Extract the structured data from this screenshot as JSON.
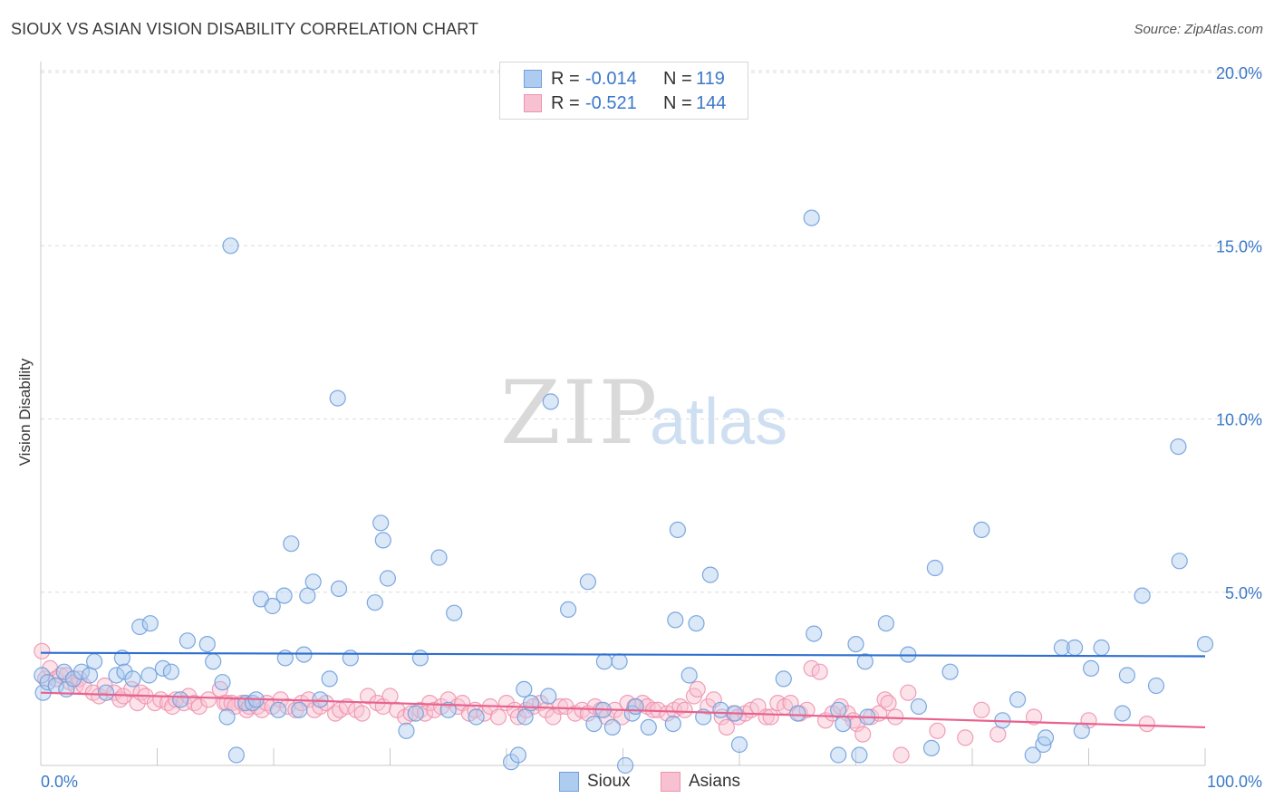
{
  "title": "SIOUX VS ASIAN VISION DISABILITY CORRELATION CHART",
  "source": "Source: ZipAtlas.com",
  "watermark": {
    "zip": "ZIP",
    "atlas": "atlas"
  },
  "legend_top": {
    "rows": [
      {
        "r_label": "R =",
        "r_value": "-0.014",
        "n_label": "N =",
        "n_value": "119"
      },
      {
        "r_label": "R =",
        "r_value": "-0.521",
        "n_label": "N =",
        "n_value": "144"
      }
    ]
  },
  "legend_bottom": [
    "Sioux",
    "Asians"
  ],
  "colors": {
    "sioux_fill": "#aecbf0",
    "sioux_stroke": "#6f9fdc",
    "sioux_line": "#2f6fcf",
    "asians_fill": "#f8c1d1",
    "asians_stroke": "#ee94b0",
    "asians_line": "#e8628e",
    "tick_text": "#3b78c9",
    "grid": "#dcdcdc"
  },
  "chart_data": {
    "type": "scatter",
    "title": "SIOUX VS ASIAN VISION DISABILITY CORRELATION CHART",
    "xlabel": "",
    "ylabel": "Vision Disability",
    "xlim": [
      0,
      100
    ],
    "ylim": [
      0,
      20.8
    ],
    "x_tick_labels": [
      "0.0%",
      "100.0%"
    ],
    "y_ticks": [
      5,
      10,
      15,
      20
    ],
    "y_tick_labels": [
      "5.0%",
      "10.0%",
      "15.0%",
      "20.0%"
    ],
    "grid": true,
    "legend_placement": "top-center and bottom",
    "series": [
      {
        "name": "Sioux",
        "r": -0.014,
        "n": 119,
        "trend": {
          "x": [
            0,
            100
          ],
          "y": [
            3.25,
            3.15
          ]
        },
        "points": [
          [
            0.1,
            2.6
          ],
          [
            0.2,
            2.1
          ],
          [
            0.6,
            2.4
          ],
          [
            1.3,
            2.3
          ],
          [
            2.0,
            2.7
          ],
          [
            2.2,
            2.2
          ],
          [
            2.8,
            2.5
          ],
          [
            3.5,
            2.7
          ],
          [
            4.2,
            2.6
          ],
          [
            4.6,
            3.0
          ],
          [
            5.6,
            2.1
          ],
          [
            6.5,
            2.6
          ],
          [
            7.0,
            3.1
          ],
          [
            7.2,
            2.7
          ],
          [
            7.9,
            2.5
          ],
          [
            8.5,
            4.0
          ],
          [
            9.3,
            2.6
          ],
          [
            9.4,
            4.1
          ],
          [
            10.5,
            2.8
          ],
          [
            11.2,
            2.7
          ],
          [
            12.0,
            1.9
          ],
          [
            12.6,
            3.6
          ],
          [
            14.3,
            3.5
          ],
          [
            14.8,
            3.0
          ],
          [
            15.6,
            2.4
          ],
          [
            16.0,
            1.4
          ],
          [
            16.3,
            15.0
          ],
          [
            16.8,
            0.3
          ],
          [
            17.6,
            1.8
          ],
          [
            18.2,
            1.8
          ],
          [
            18.5,
            1.9
          ],
          [
            18.9,
            4.8
          ],
          [
            19.9,
            4.6
          ],
          [
            20.4,
            1.6
          ],
          [
            20.9,
            4.9
          ],
          [
            21.0,
            3.1
          ],
          [
            21.5,
            6.4
          ],
          [
            22.2,
            1.6
          ],
          [
            22.6,
            3.2
          ],
          [
            22.9,
            4.9
          ],
          [
            23.4,
            5.3
          ],
          [
            24.0,
            1.9
          ],
          [
            24.8,
            2.5
          ],
          [
            25.5,
            10.6
          ],
          [
            25.6,
            5.1
          ],
          [
            26.6,
            3.1
          ],
          [
            28.7,
            4.7
          ],
          [
            29.2,
            7.0
          ],
          [
            29.4,
            6.5
          ],
          [
            29.8,
            5.4
          ],
          [
            31.4,
            1.0
          ],
          [
            32.2,
            1.5
          ],
          [
            32.6,
            3.1
          ],
          [
            34.2,
            6.0
          ],
          [
            35.0,
            1.6
          ],
          [
            35.5,
            4.4
          ],
          [
            37.4,
            1.4
          ],
          [
            40.4,
            0.1
          ],
          [
            41.0,
            0.3
          ],
          [
            41.5,
            2.2
          ],
          [
            41.6,
            1.4
          ],
          [
            42.1,
            1.8
          ],
          [
            43.6,
            2.0
          ],
          [
            43.8,
            10.5
          ],
          [
            45.3,
            4.5
          ],
          [
            47.0,
            5.3
          ],
          [
            47.5,
            1.2
          ],
          [
            48.3,
            1.6
          ],
          [
            48.4,
            3.0
          ],
          [
            49.1,
            1.1
          ],
          [
            49.7,
            3.0
          ],
          [
            50.2,
            0.0
          ],
          [
            50.8,
            1.5
          ],
          [
            51.1,
            1.7
          ],
          [
            52.2,
            1.1
          ],
          [
            54.3,
            1.2
          ],
          [
            54.5,
            4.2
          ],
          [
            54.7,
            6.8
          ],
          [
            55.7,
            2.6
          ],
          [
            56.3,
            4.1
          ],
          [
            56.9,
            1.4
          ],
          [
            57.5,
            5.5
          ],
          [
            58.4,
            1.6
          ],
          [
            59.6,
            1.5
          ],
          [
            60.0,
            0.6
          ],
          [
            63.8,
            2.5
          ],
          [
            65.0,
            1.5
          ],
          [
            66.2,
            15.8
          ],
          [
            66.4,
            3.8
          ],
          [
            68.5,
            0.3
          ],
          [
            68.5,
            1.6
          ],
          [
            68.9,
            1.2
          ],
          [
            70.0,
            3.5
          ],
          [
            70.3,
            0.3
          ],
          [
            70.8,
            3.0
          ],
          [
            71.0,
            1.4
          ],
          [
            72.6,
            4.1
          ],
          [
            74.5,
            3.2
          ],
          [
            75.4,
            1.7
          ],
          [
            76.5,
            0.5
          ],
          [
            76.8,
            5.7
          ],
          [
            78.1,
            2.7
          ],
          [
            80.8,
            6.8
          ],
          [
            82.6,
            1.3
          ],
          [
            83.9,
            1.9
          ],
          [
            85.2,
            0.3
          ],
          [
            86.1,
            0.6
          ],
          [
            86.3,
            0.8
          ],
          [
            87.7,
            3.4
          ],
          [
            88.8,
            3.4
          ],
          [
            89.4,
            1.0
          ],
          [
            90.2,
            2.8
          ],
          [
            91.1,
            3.4
          ],
          [
            92.9,
            1.5
          ],
          [
            93.3,
            2.6
          ],
          [
            94.6,
            4.9
          ],
          [
            95.8,
            2.3
          ],
          [
            97.7,
            9.2
          ],
          [
            97.8,
            5.9
          ],
          [
            100.0,
            3.5
          ]
        ]
      },
      {
        "name": "Asians",
        "r": -0.521,
        "n": 144,
        "trend": {
          "x": [
            0,
            100
          ],
          "y": [
            2.1,
            1.1
          ]
        },
        "points": [
          [
            0.1,
            3.3
          ],
          [
            0.4,
            2.5
          ],
          [
            0.8,
            2.8
          ],
          [
            1.3,
            2.5
          ],
          [
            1.7,
            2.6
          ],
          [
            2.2,
            2.6
          ],
          [
            2.5,
            2.4
          ],
          [
            3.0,
            2.3
          ],
          [
            3.3,
            2.5
          ],
          [
            3.7,
            2.3
          ],
          [
            4.5,
            2.1
          ],
          [
            5.0,
            2.0
          ],
          [
            5.5,
            2.3
          ],
          [
            6.3,
            2.1
          ],
          [
            6.8,
            1.9
          ],
          [
            7.1,
            2.0
          ],
          [
            7.8,
            2.2
          ],
          [
            8.3,
            1.8
          ],
          [
            8.6,
            2.1
          ],
          [
            9.0,
            2.0
          ],
          [
            9.8,
            1.8
          ],
          [
            10.3,
            1.9
          ],
          [
            10.9,
            1.8
          ],
          [
            11.3,
            1.7
          ],
          [
            11.6,
            1.9
          ],
          [
            12.3,
            1.8
          ],
          [
            12.7,
            2.0
          ],
          [
            13.2,
            1.8
          ],
          [
            13.6,
            1.7
          ],
          [
            14.4,
            1.9
          ],
          [
            15.4,
            2.2
          ],
          [
            15.8,
            1.8
          ],
          [
            16.0,
            1.8
          ],
          [
            16.4,
            1.8
          ],
          [
            16.7,
            1.7
          ],
          [
            17.3,
            1.8
          ],
          [
            17.7,
            1.6
          ],
          [
            17.9,
            1.7
          ],
          [
            18.6,
            1.7
          ],
          [
            19.0,
            1.6
          ],
          [
            19.4,
            1.8
          ],
          [
            19.9,
            1.7
          ],
          [
            20.6,
            1.9
          ],
          [
            21.2,
            1.7
          ],
          [
            21.9,
            1.6
          ],
          [
            22.4,
            1.8
          ],
          [
            23.0,
            1.9
          ],
          [
            23.5,
            1.6
          ],
          [
            24.0,
            1.7
          ],
          [
            24.5,
            1.8
          ],
          [
            25.3,
            1.5
          ],
          [
            25.7,
            1.6
          ],
          [
            26.3,
            1.7
          ],
          [
            27.1,
            1.6
          ],
          [
            27.6,
            1.5
          ],
          [
            28.1,
            2.0
          ],
          [
            28.9,
            1.8
          ],
          [
            29.4,
            1.7
          ],
          [
            30.0,
            2.0
          ],
          [
            30.6,
            1.6
          ],
          [
            31.3,
            1.4
          ],
          [
            31.8,
            1.5
          ],
          [
            32.6,
            1.6
          ],
          [
            33.0,
            1.5
          ],
          [
            33.4,
            1.8
          ],
          [
            33.8,
            1.6
          ],
          [
            34.4,
            1.7
          ],
          [
            35.0,
            1.9
          ],
          [
            35.8,
            1.7
          ],
          [
            36.2,
            1.8
          ],
          [
            36.8,
            1.5
          ],
          [
            37.3,
            1.6
          ],
          [
            38.1,
            1.5
          ],
          [
            38.6,
            1.7
          ],
          [
            39.3,
            1.4
          ],
          [
            40.0,
            1.8
          ],
          [
            40.7,
            1.6
          ],
          [
            41.0,
            1.4
          ],
          [
            41.7,
            1.6
          ],
          [
            42.3,
            1.7
          ],
          [
            42.9,
            1.8
          ],
          [
            43.4,
            1.6
          ],
          [
            44.0,
            1.4
          ],
          [
            44.6,
            1.7
          ],
          [
            45.1,
            1.7
          ],
          [
            45.9,
            1.5
          ],
          [
            46.5,
            1.6
          ],
          [
            47.0,
            1.5
          ],
          [
            47.6,
            1.7
          ],
          [
            48.1,
            1.6
          ],
          [
            48.6,
            1.4
          ],
          [
            49.3,
            1.6
          ],
          [
            49.9,
            1.4
          ],
          [
            50.4,
            1.8
          ],
          [
            51.0,
            1.7
          ],
          [
            51.7,
            1.8
          ],
          [
            52.1,
            1.7
          ],
          [
            52.6,
            1.6
          ],
          [
            53.0,
            1.6
          ],
          [
            53.8,
            1.5
          ],
          [
            54.4,
            1.6
          ],
          [
            54.9,
            1.7
          ],
          [
            55.3,
            1.6
          ],
          [
            56.1,
            2.0
          ],
          [
            56.4,
            2.2
          ],
          [
            57.3,
            1.7
          ],
          [
            57.8,
            1.9
          ],
          [
            58.5,
            1.4
          ],
          [
            58.9,
            1.1
          ],
          [
            59.5,
            1.5
          ],
          [
            59.9,
            1.4
          ],
          [
            60.5,
            1.5
          ],
          [
            61.0,
            1.6
          ],
          [
            61.6,
            1.7
          ],
          [
            62.3,
            1.4
          ],
          [
            62.7,
            1.4
          ],
          [
            63.3,
            1.8
          ],
          [
            63.9,
            1.7
          ],
          [
            64.4,
            1.8
          ],
          [
            65.2,
            1.5
          ],
          [
            65.8,
            1.6
          ],
          [
            66.2,
            2.8
          ],
          [
            66.9,
            2.7
          ],
          [
            67.4,
            1.3
          ],
          [
            68.0,
            1.5
          ],
          [
            68.7,
            1.7
          ],
          [
            69.3,
            1.5
          ],
          [
            69.8,
            1.3
          ],
          [
            70.1,
            1.2
          ],
          [
            70.6,
            0.9
          ],
          [
            71.3,
            1.4
          ],
          [
            72.0,
            1.5
          ],
          [
            72.5,
            1.9
          ],
          [
            72.8,
            1.8
          ],
          [
            73.4,
            1.4
          ],
          [
            73.9,
            0.3
          ],
          [
            74.5,
            2.1
          ],
          [
            77.0,
            1.0
          ],
          [
            79.4,
            0.8
          ],
          [
            80.8,
            1.6
          ],
          [
            82.2,
            0.9
          ],
          [
            85.3,
            1.4
          ],
          [
            90.0,
            1.3
          ],
          [
            95.0,
            1.2
          ]
        ]
      }
    ]
  }
}
